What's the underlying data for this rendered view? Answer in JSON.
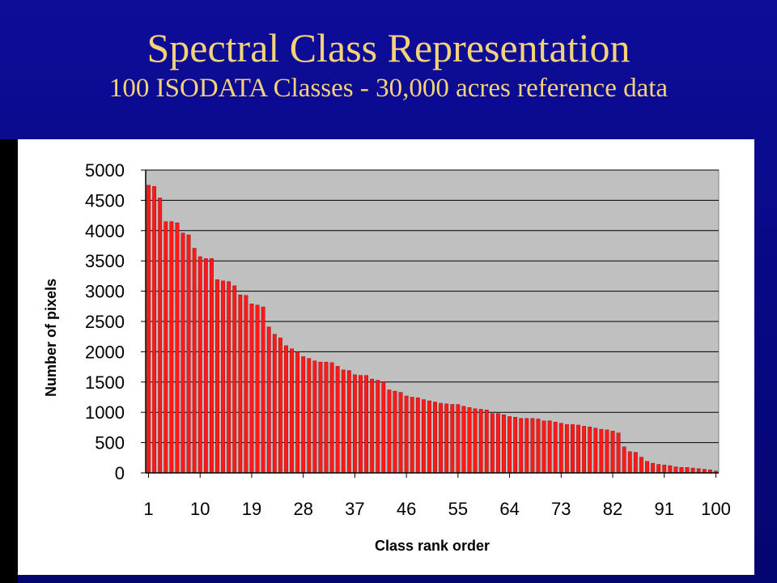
{
  "slide": {
    "title": "Spectral Class Representation",
    "subtitle": "100 ISODATA Classes - 30,000 acres reference data"
  },
  "colors": {
    "background": "#0a0a8c",
    "title": "#f4d27a",
    "plot_area": "#c0c0c0",
    "bar_fill": "#ff1a1a",
    "bar_stroke": "#8b0000",
    "gridline": "#000000"
  },
  "chart_data": {
    "type": "bar",
    "title": "",
    "xlabel": "Class rank order",
    "ylabel": "Number of pixels",
    "ylim": [
      0,
      5000
    ],
    "yticks": [
      0,
      500,
      1000,
      1500,
      2000,
      2500,
      3000,
      3500,
      4000,
      4500,
      5000
    ],
    "xtick_labels": [
      "1",
      "10",
      "19",
      "28",
      "37",
      "46",
      "55",
      "64",
      "73",
      "82",
      "91",
      "100"
    ],
    "grid": true,
    "legend": "none",
    "categories": [
      "1",
      "2",
      "3",
      "4",
      "5",
      "6",
      "7",
      "8",
      "9",
      "10",
      "11",
      "12",
      "13",
      "14",
      "15",
      "16",
      "17",
      "18",
      "19",
      "20",
      "21",
      "22",
      "23",
      "24",
      "25",
      "26",
      "27",
      "28",
      "29",
      "30",
      "31",
      "32",
      "33",
      "34",
      "35",
      "36",
      "37",
      "38",
      "39",
      "40",
      "41",
      "42",
      "43",
      "44",
      "45",
      "46",
      "47",
      "48",
      "49",
      "50",
      "51",
      "52",
      "53",
      "54",
      "55",
      "56",
      "57",
      "58",
      "59",
      "60",
      "61",
      "62",
      "63",
      "64",
      "65",
      "66",
      "67",
      "68",
      "69",
      "70",
      "71",
      "72",
      "73",
      "74",
      "75",
      "76",
      "77",
      "78",
      "79",
      "80",
      "81",
      "82",
      "83",
      "84",
      "85",
      "86",
      "87",
      "88",
      "89",
      "90",
      "91",
      "92",
      "93",
      "94",
      "95",
      "96",
      "97",
      "98",
      "99",
      "100"
    ],
    "values": [
      4750,
      4730,
      4540,
      4150,
      4150,
      4130,
      3960,
      3930,
      3710,
      3570,
      3540,
      3540,
      3190,
      3170,
      3160,
      3090,
      2940,
      2930,
      2790,
      2770,
      2740,
      2410,
      2290,
      2230,
      2100,
      2050,
      2000,
      1920,
      1890,
      1850,
      1830,
      1830,
      1820,
      1760,
      1700,
      1690,
      1620,
      1610,
      1610,
      1550,
      1530,
      1500,
      1370,
      1350,
      1330,
      1270,
      1250,
      1240,
      1210,
      1190,
      1170,
      1150,
      1140,
      1130,
      1130,
      1100,
      1080,
      1060,
      1050,
      1040,
      980,
      980,
      960,
      930,
      920,
      900,
      900,
      900,
      890,
      860,
      860,
      840,
      820,
      800,
      800,
      790,
      770,
      760,
      740,
      720,
      710,
      690,
      660,
      430,
      350,
      340,
      260,
      190,
      160,
      140,
      130,
      120,
      100,
      90,
      90,
      80,
      70,
      60,
      50,
      30
    ]
  }
}
